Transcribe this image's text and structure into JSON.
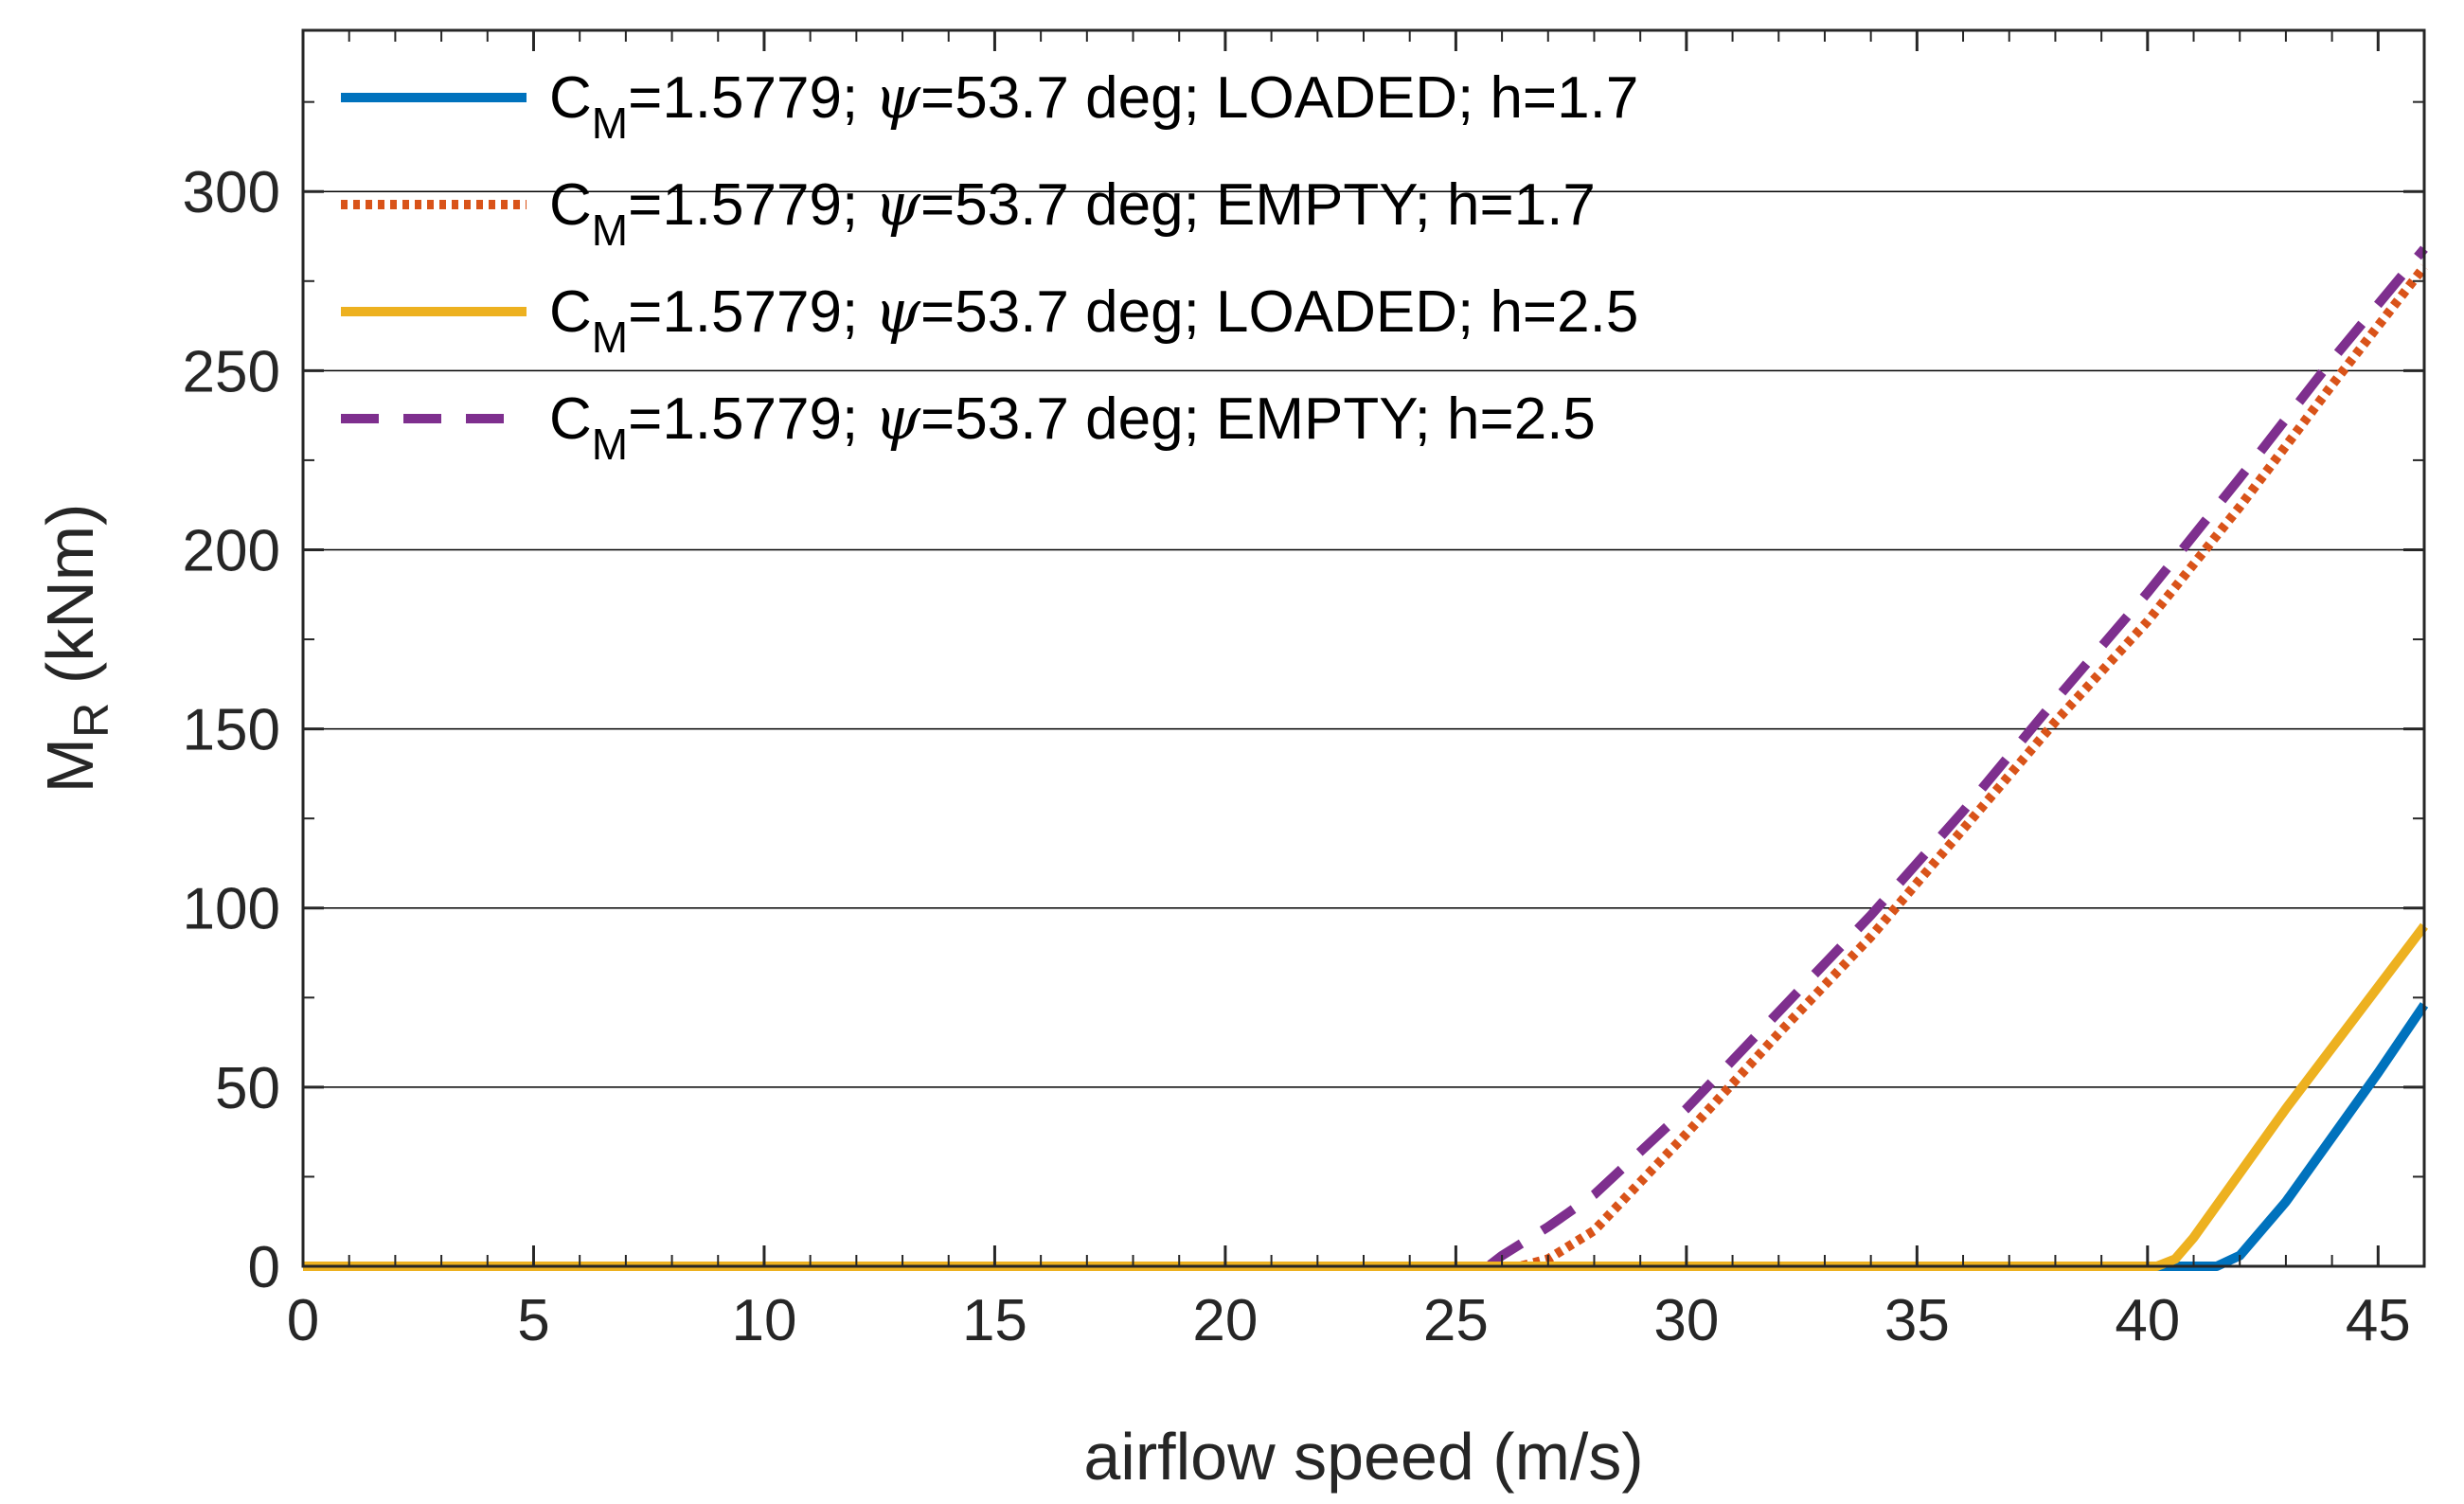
{
  "chart_data": {
    "type": "line",
    "title": "",
    "xlabel": "airflow speed (m/s)",
    "ylabel_main": "M",
    "ylabel_sub": "R",
    "ylabel_unit": " (kNm)",
    "xlim": [
      0,
      46
    ],
    "ylim": [
      0,
      345
    ],
    "xticks": [
      0,
      5,
      10,
      15,
      20,
      25,
      30,
      35,
      40,
      45
    ],
    "yticks": [
      0,
      50,
      100,
      150,
      200,
      250,
      300
    ],
    "grid": "horizontal",
    "legend_position": "top-left",
    "series": [
      {
        "name": "C_M=1.5779; ψ=53.7 deg; LOADED; h=1.7",
        "legend_main": "C",
        "legend_sub": "M",
        "legend_pre": "=1.5779; ",
        "legend_psi": "ψ",
        "legend_post": "=53.7 deg; LOADED; h=1.7",
        "color": "#0072BD",
        "style": "solid",
        "x": [
          0,
          41.5,
          42,
          43,
          44,
          45,
          46
        ],
        "y": [
          0,
          0,
          3,
          18,
          36,
          54,
          73
        ]
      },
      {
        "name": "C_M=1.5779; ψ=53.7 deg; EMPTY; h=1.7",
        "legend_main": "C",
        "legend_sub": "M",
        "legend_pre": "=1.5779; ",
        "legend_psi": "ψ",
        "legend_post": "=53.7 deg; EMPTY; h=1.7",
        "color": "#D95319",
        "style": "dotted",
        "x": [
          0,
          26.4,
          27,
          28,
          30,
          32,
          34,
          36,
          38,
          40,
          42,
          44,
          46
        ],
        "y": [
          0,
          0,
          2,
          10,
          37,
          65,
          92,
          122,
          152,
          180,
          212,
          246,
          279
        ]
      },
      {
        "name": "C_M=1.5779; ψ=53.7 deg; LOADED; h=2.5",
        "legend_main": "C",
        "legend_sub": "M",
        "legend_pre": "=1.5779; ",
        "legend_psi": "ψ",
        "legend_post": "=53.7 deg; LOADED; h=2.5",
        "color": "#EDB120",
        "style": "solid",
        "x": [
          0,
          40.2,
          40.6,
          41,
          42,
          43,
          44,
          45,
          46
        ],
        "y": [
          0,
          0,
          2,
          8,
          26,
          44,
          61,
          78,
          95
        ]
      },
      {
        "name": "C_M=1.5779; ψ=53.7 deg; EMPTY; h=2.5",
        "legend_main": "C",
        "legend_sub": "M",
        "legend_pre": "=1.5779; ",
        "legend_psi": "ψ",
        "legend_post": "=53.7 deg; EMPTY; h=2.5",
        "color": "#7E2F8E",
        "style": "dashed",
        "x": [
          0,
          25.7,
          26,
          27,
          28,
          30,
          32,
          34,
          36,
          38,
          40,
          42,
          44,
          46
        ],
        "y": [
          0,
          0,
          3,
          11,
          20,
          44,
          71,
          98,
          127,
          158,
          188,
          220,
          253,
          284
        ]
      }
    ]
  }
}
